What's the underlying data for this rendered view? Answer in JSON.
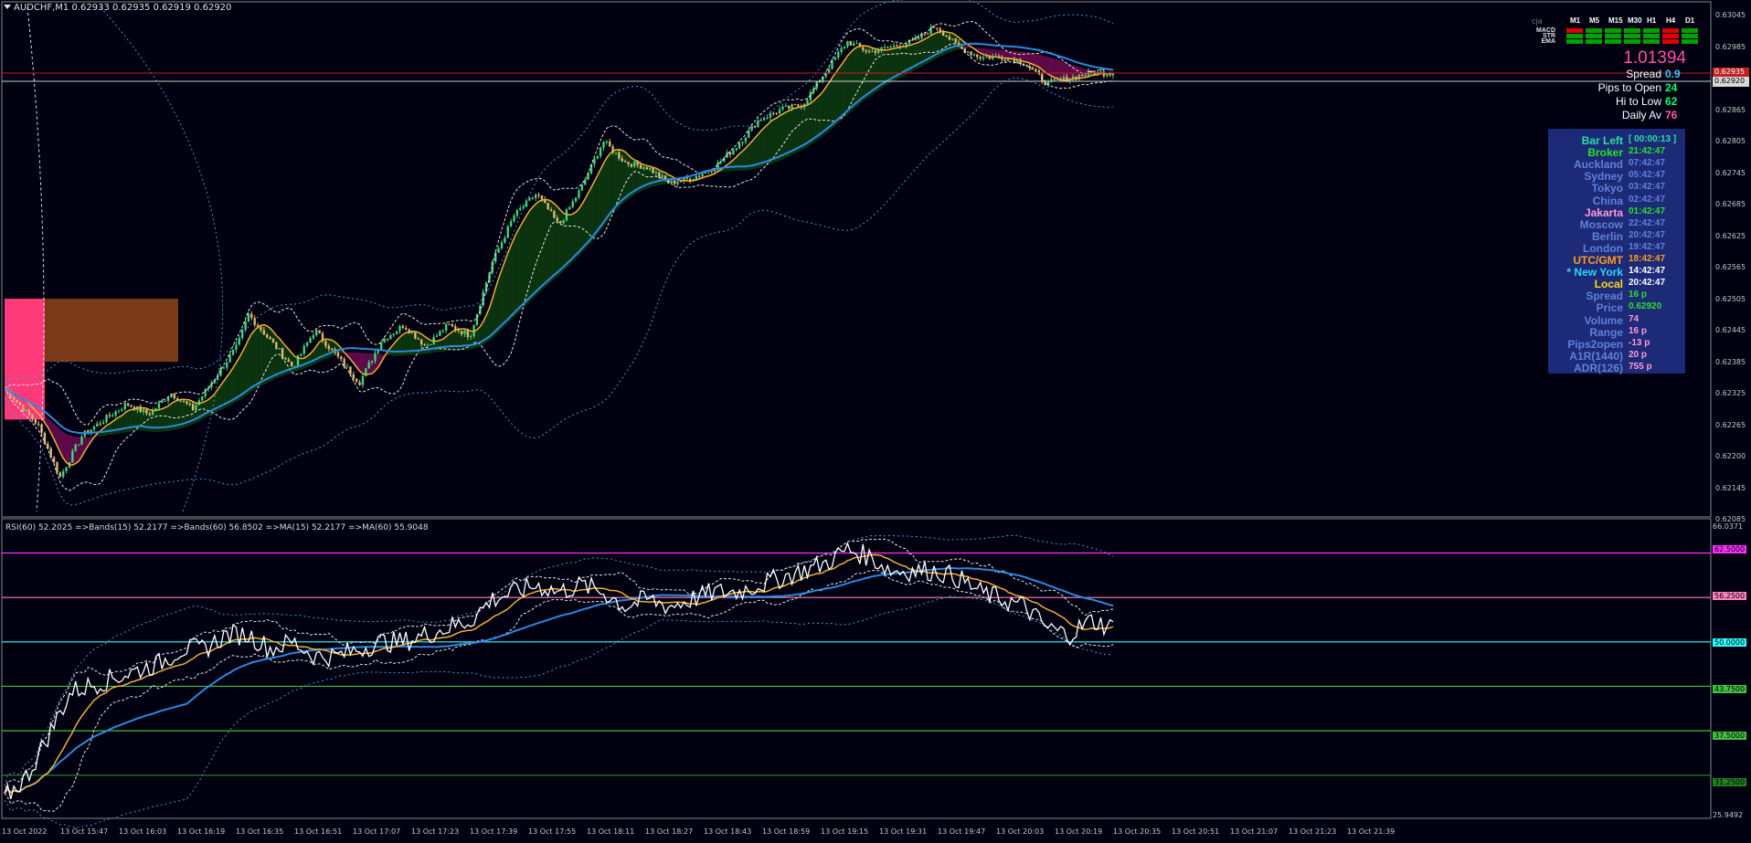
{
  "header": {
    "symbol_line": "AUDCHF,M1  0.62933 0.62935 0.62919 0.62920"
  },
  "rsi_header": {
    "text": "RSI(60) 52.2025  =>Bands(15) 52.2177  =>Bands(60) 56.8502  =>MA(15) 52.2177  =>MA(60) 55.9048"
  },
  "mtf": {
    "brand": "cja",
    "timeframes": [
      "M1",
      "M5",
      "M15",
      "M30",
      "H1",
      "H4",
      "D1"
    ],
    "rows": [
      {
        "label": "MACD",
        "states": [
          "red",
          "green",
          "green",
          "green",
          "green",
          "red",
          "green"
        ]
      },
      {
        "label": "STR",
        "states": [
          "green",
          "green",
          "green",
          "green",
          "green",
          "red",
          "green"
        ]
      },
      {
        "label": "EMA",
        "states": [
          "green",
          "green",
          "green",
          "green",
          "green",
          "red",
          "green"
        ]
      }
    ],
    "colors": {
      "green": "#00a000",
      "red": "#e00000"
    }
  },
  "ticker": {
    "price": "1.01394",
    "rows": [
      {
        "key": "Spread",
        "value": "0.9",
        "color": "#3cc8ff"
      },
      {
        "key": "Pips to Open",
        "value": "24",
        "color": "#00ff66"
      },
      {
        "key": "Hi to Low",
        "value": "62",
        "color": "#00ff66"
      },
      {
        "key": "Daily Av",
        "value": "76",
        "color": "#ff5aa8"
      }
    ]
  },
  "clock": {
    "rows": [
      {
        "key": "Bar Left",
        "value": "[ 00:00:13 ]",
        "kc": "#28e0a0",
        "vc": "#28e0a0"
      },
      {
        "key": "Broker",
        "value": "21:42:47",
        "kc": "#28e028",
        "vc": "#28e028"
      },
      {
        "key": "Auckland",
        "value": "07:42:47",
        "kc": "#6080d8",
        "vc": "#6080d8"
      },
      {
        "key": "Sydney",
        "value": "05:42:47",
        "kc": "#6080d8",
        "vc": "#6080d8"
      },
      {
        "key": "Tokyo",
        "value": "03:42:47",
        "kc": "#6080d8",
        "vc": "#6080d8"
      },
      {
        "key": "China",
        "value": "02:42:47",
        "kc": "#6080d8",
        "vc": "#6080d8"
      },
      {
        "key": "Jakarta",
        "value": "01:42:47",
        "kc": "#ff9ad8",
        "vc": "#28e028"
      },
      {
        "key": "Moscow",
        "value": "22:42:47",
        "kc": "#6080d8",
        "vc": "#6080d8"
      },
      {
        "key": "Berlin",
        "value": "20:42:47",
        "kc": "#6080d8",
        "vc": "#6080d8"
      },
      {
        "key": "London",
        "value": "19:42:47",
        "kc": "#6080d8",
        "vc": "#6080d8"
      },
      {
        "key": "UTC/GMT",
        "value": "18:42:47",
        "kc": "#ff9a20",
        "vc": "#ff9a20"
      },
      {
        "key": "* New York",
        "value": "14:42:47",
        "kc": "#28d8ff",
        "vc": "#ffffff"
      },
      {
        "key": "Local",
        "value": "20:42:47",
        "kc": "#ffd820",
        "vc": "#ffffff"
      },
      {
        "key": "Spread",
        "value": "16 p",
        "kc": "#6080d8",
        "vc": "#28e028"
      },
      {
        "key": "Price",
        "value": "0.62920",
        "kc": "#6080d8",
        "vc": "#28e028"
      },
      {
        "key": "Volume",
        "value": "74",
        "kc": "#6080d8",
        "vc": "#ff9ad8"
      },
      {
        "key": "Range",
        "value": "16 p",
        "kc": "#6080d8",
        "vc": "#ff9ad8"
      },
      {
        "key": "Pips2open",
        "value": "-13 p",
        "kc": "#6080d8",
        "vc": "#ff9ad8"
      },
      {
        "key": "A1R(1440)",
        "value": "20 p",
        "kc": "#6080d8",
        "vc": "#ff9ad8"
      },
      {
        "key": "ADR(126)",
        "value": "755 p",
        "kc": "#6080d8",
        "vc": "#ff9ad8"
      }
    ]
  },
  "price_axis": [
    "0.63045",
    "0.62985",
    "0.62920",
    "0.62865",
    "0.62805",
    "0.62745",
    "0.62685",
    "0.62625",
    "0.62565",
    "0.62505",
    "0.62445",
    "0.62385",
    "0.62325",
    "0.62265",
    "0.62200",
    "0.62145",
    "0.62085"
  ],
  "price_tags": {
    "high_red": "0.62935",
    "current": "0.62920"
  },
  "rsi_axis": [
    {
      "label": "66.0371",
      "color": "#c8c8c8"
    },
    {
      "label": "62.5000",
      "color": "#ff30ff"
    },
    {
      "label": "56.2500",
      "color": "#ff80c0"
    },
    {
      "label": "50.0000",
      "color": "#30ffff"
    },
    {
      "label": "43.7500",
      "color": "#40c040"
    },
    {
      "label": "37.5000",
      "color": "#40c040"
    },
    {
      "label": "31.2500",
      "color": "#208020"
    },
    {
      "label": "25.9492",
      "color": "#c8c8c8"
    }
  ],
  "time_axis": [
    "13 Oct 2022",
    "13 Oct 15:47",
    "13 Oct 16:03",
    "13 Oct 16:19",
    "13 Oct 16:35",
    "13 Oct 16:51",
    "13 Oct 17:07",
    "13 Oct 17:23",
    "13 Oct 17:39",
    "13 Oct 17:55",
    "13 Oct 18:11",
    "13 Oct 18:27",
    "13 Oct 18:43",
    "13 Oct 18:59",
    "13 Oct 19:15",
    "13 Oct 19:31",
    "13 Oct 19:47",
    "13 Oct 20:03",
    "13 Oct 20:19",
    "13 Oct 20:35",
    "13 Oct 20:51",
    "13 Oct 21:07",
    "13 Oct 21:23",
    "13 Oct 21:39"
  ],
  "chart_data": {
    "type": "line",
    "price": {
      "x_range": [
        0,
        100
      ],
      "ylim": [
        0.62085,
        0.63045
      ],
      "close_approx": [
        [
          0,
          0.6232
        ],
        [
          3,
          0.6225
        ],
        [
          5,
          0.6215
        ],
        [
          7,
          0.6223
        ],
        [
          9,
          0.6226
        ],
        [
          11,
          0.6229
        ],
        [
          13,
          0.6227
        ],
        [
          15,
          0.6231
        ],
        [
          17,
          0.6228
        ],
        [
          19,
          0.6234
        ],
        [
          21,
          0.624
        ],
        [
          22,
          0.6246
        ],
        [
          24,
          0.6241
        ],
        [
          26,
          0.6236
        ],
        [
          28,
          0.6243
        ],
        [
          30,
          0.6238
        ],
        [
          32,
          0.6233
        ],
        [
          34,
          0.6241
        ],
        [
          36,
          0.6244
        ],
        [
          38,
          0.624
        ],
        [
          40,
          0.6244
        ],
        [
          42,
          0.6242
        ],
        [
          44,
          0.6256
        ],
        [
          46,
          0.6265
        ],
        [
          48,
          0.6269
        ],
        [
          50,
          0.6263
        ],
        [
          52,
          0.627
        ],
        [
          54,
          0.6279
        ],
        [
          56,
          0.6275
        ],
        [
          58,
          0.6274
        ],
        [
          60,
          0.6271
        ],
        [
          62,
          0.6272
        ],
        [
          64,
          0.6274
        ],
        [
          66,
          0.6278
        ],
        [
          68,
          0.6283
        ],
        [
          70,
          0.6285
        ],
        [
          72,
          0.6286
        ],
        [
          74,
          0.6292
        ],
        [
          76,
          0.6298
        ],
        [
          78,
          0.6296
        ],
        [
          80,
          0.6297
        ],
        [
          82,
          0.6298
        ],
        [
          84,
          0.6301
        ],
        [
          86,
          0.6297
        ],
        [
          88,
          0.6295
        ],
        [
          90,
          0.6295
        ],
        [
          92,
          0.6294
        ],
        [
          94,
          0.629
        ],
        [
          96,
          0.6291
        ],
        [
          98,
          0.6292
        ],
        [
          100,
          0.6292
        ]
      ]
    },
    "rsi": {
      "ylim": [
        25.9492,
        66.0371
      ],
      "levels": [
        62.5,
        56.25,
        50.0,
        43.75,
        37.5,
        31.25
      ],
      "rsi_approx": [
        [
          0,
          28
        ],
        [
          2,
          31
        ],
        [
          4,
          37
        ],
        [
          6,
          43
        ],
        [
          8,
          44
        ],
        [
          10,
          45
        ],
        [
          12,
          46
        ],
        [
          14,
          47
        ],
        [
          16,
          49
        ],
        [
          18,
          49
        ],
        [
          20,
          51
        ],
        [
          22,
          51
        ],
        [
          24,
          49
        ],
        [
          26,
          50
        ],
        [
          28,
          48
        ],
        [
          30,
          48
        ],
        [
          32,
          49
        ],
        [
          34,
          50
        ],
        [
          36,
          50
        ],
        [
          38,
          51
        ],
        [
          40,
          52
        ],
        [
          42,
          53
        ],
        [
          44,
          56
        ],
        [
          46,
          57
        ],
        [
          48,
          58
        ],
        [
          50,
          57
        ],
        [
          52,
          58
        ],
        [
          54,
          57
        ],
        [
          56,
          55
        ],
        [
          58,
          56
        ],
        [
          60,
          55
        ],
        [
          62,
          56
        ],
        [
          64,
          57
        ],
        [
          66,
          57
        ],
        [
          68,
          58
        ],
        [
          70,
          59
        ],
        [
          72,
          60
        ],
        [
          74,
          61
        ],
        [
          76,
          63
        ],
        [
          78,
          62
        ],
        [
          80,
          60
        ],
        [
          82,
          60
        ],
        [
          84,
          60
        ],
        [
          86,
          59
        ],
        [
          88,
          57
        ],
        [
          90,
          56
        ],
        [
          92,
          55
        ],
        [
          94,
          52
        ],
        [
          96,
          51
        ],
        [
          98,
          53
        ],
        [
          100,
          52
        ]
      ]
    }
  }
}
